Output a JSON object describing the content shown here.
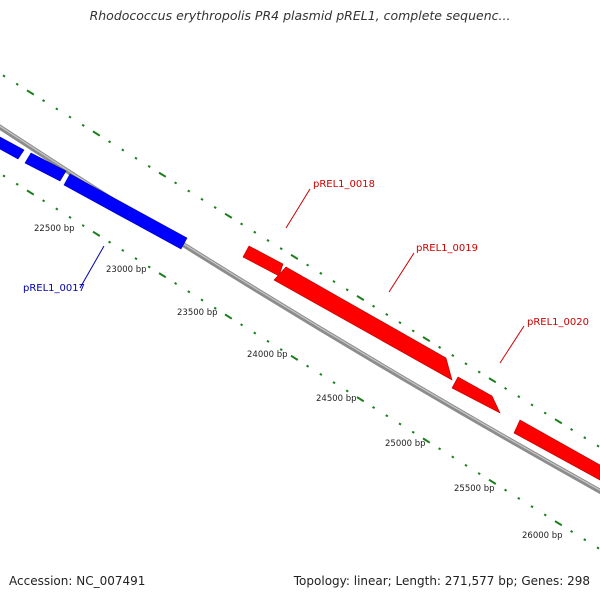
{
  "header": {
    "title": "Rhodococcus erythropolis PR4 plasmid pREL1, complete sequenc..."
  },
  "footer": {
    "accession": "Accession: NC_007491",
    "summary": "Topology: linear; Length: 271,577 bp; Genes: 298"
  },
  "colors": {
    "backbone": "#8c8c8c",
    "plus_strand_gene": "#ff0000",
    "minus_strand_gene": "#0000ff",
    "tick": "#1a7f1a",
    "plus_label": "#cc0000",
    "minus_label": "#0000aa"
  },
  "position_labels": [
    "22500 bp",
    "23000 bp",
    "23500 bp",
    "24000 bp",
    "24500 bp",
    "25000 bp",
    "25500 bp",
    "26000 bp"
  ],
  "genes": [
    {
      "label": "pREL1_0017",
      "strand": "minus"
    },
    {
      "label": "pREL1_0018",
      "strand": "plus"
    },
    {
      "label": "pREL1_0019",
      "strand": "plus"
    },
    {
      "label": "pREL1_0020",
      "strand": "plus"
    }
  ]
}
